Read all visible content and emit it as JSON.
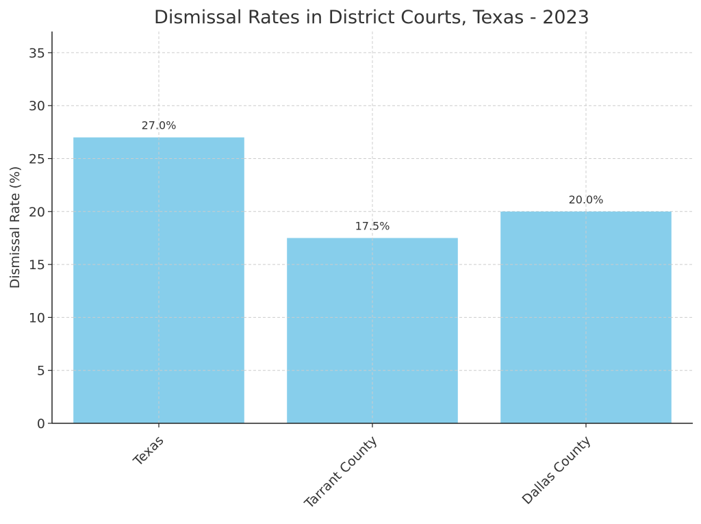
{
  "chart_data": {
    "type": "bar",
    "title": "Dismissal Rates in District Courts, Texas - 2023",
    "xlabel": "",
    "ylabel": "Dismissal Rate (%)",
    "categories": [
      "Texas",
      "Tarrant County",
      "Dallas County"
    ],
    "values": [
      27.0,
      17.5,
      20.0
    ],
    "data_labels": [
      "27.0%",
      "17.5%",
      "20.0%"
    ],
    "ylim": [
      0,
      37
    ],
    "yticks": [
      0,
      5,
      10,
      15,
      20,
      25,
      30,
      35
    ],
    "grid": true,
    "bar_color": "#87CEEB"
  }
}
